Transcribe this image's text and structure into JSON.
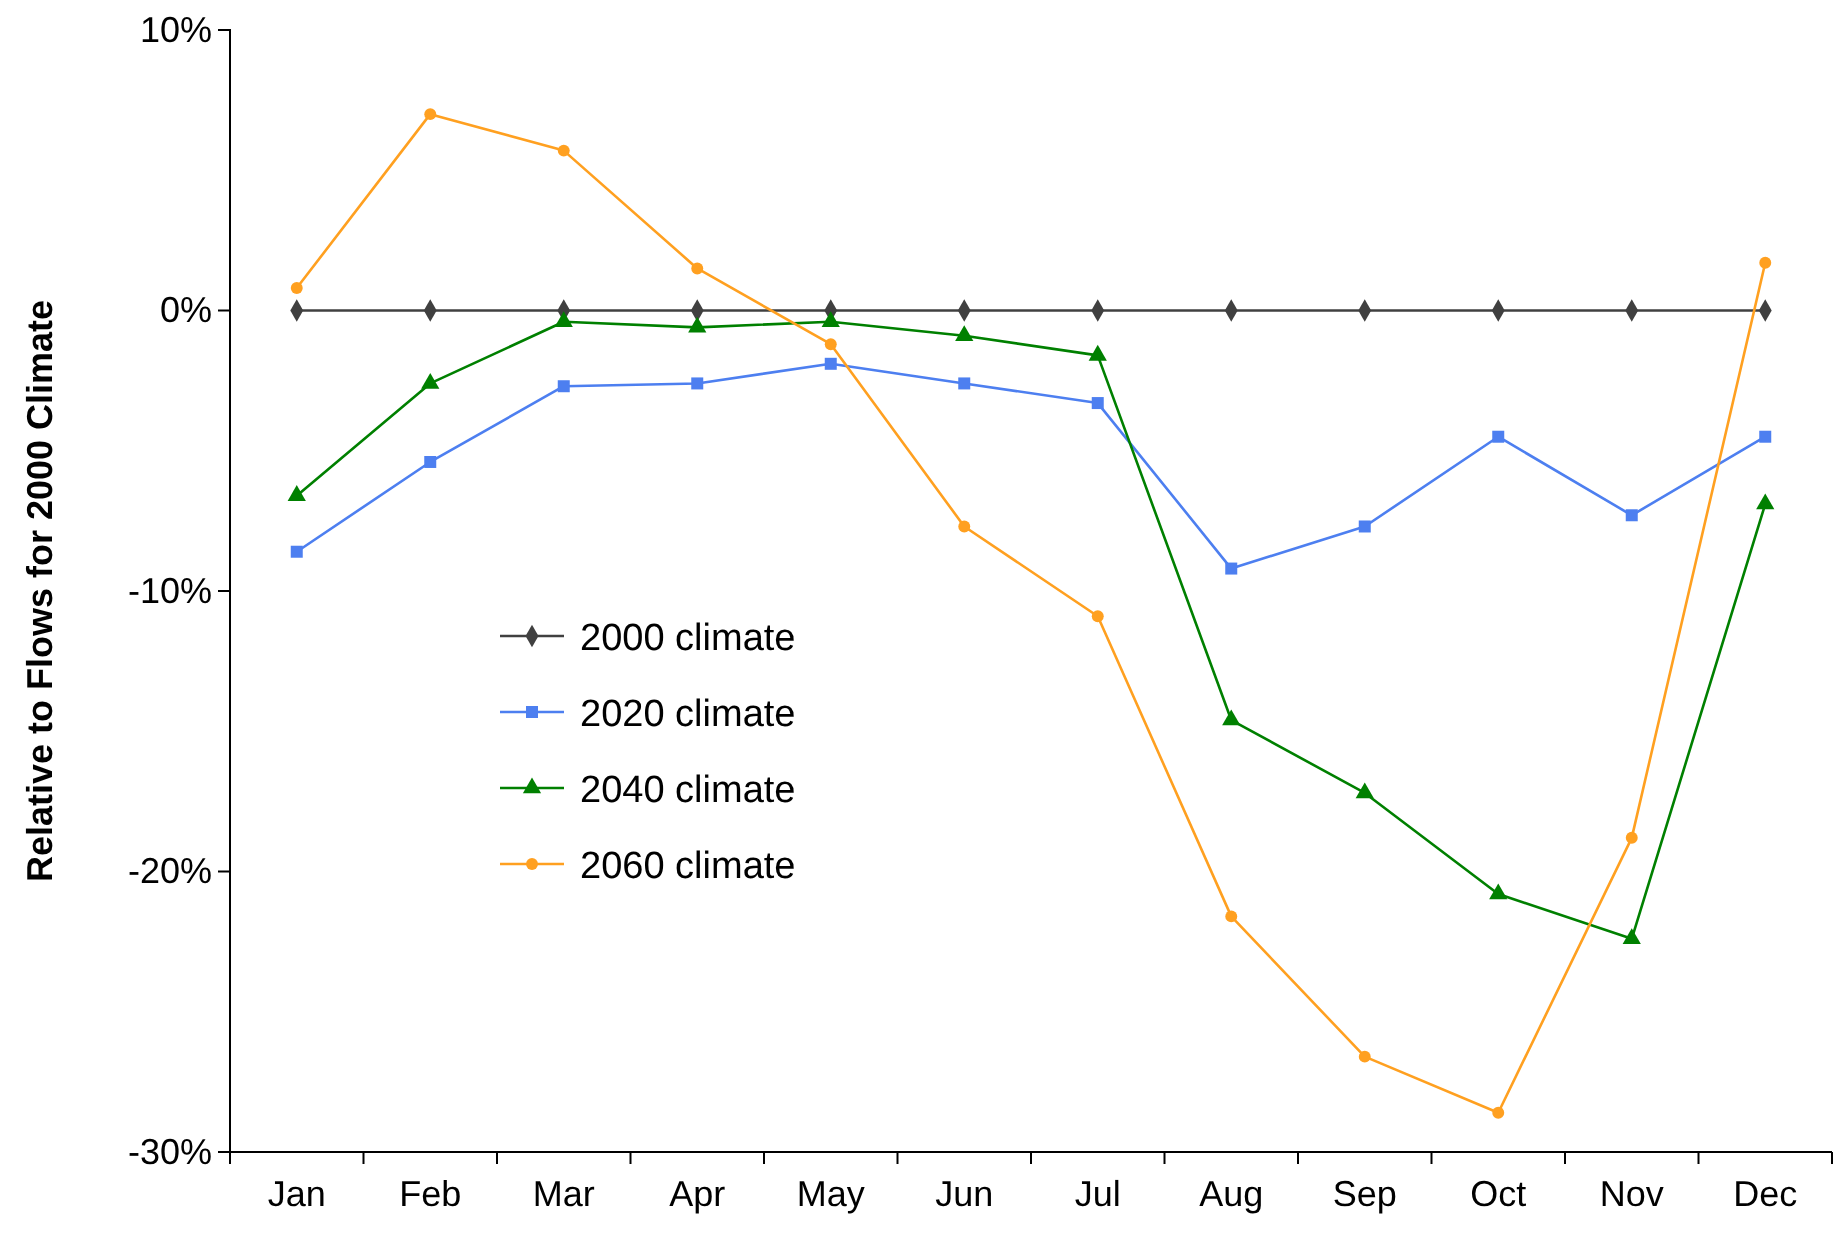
{
  "chart_data": {
    "type": "line",
    "ylabel": "Relative to Flows for 2000 Climate",
    "categories": [
      "Jan",
      "Feb",
      "Mar",
      "Apr",
      "May",
      "Jun",
      "Jul",
      "Aug",
      "Sep",
      "Oct",
      "Nov",
      "Dec"
    ],
    "ylim": [
      -30,
      10
    ],
    "yticks": [
      {
        "value": -30,
        "label": "-30%"
      },
      {
        "value": -20,
        "label": "-20%"
      },
      {
        "value": -10,
        "label": "-10%"
      },
      {
        "value": 0,
        "label": "0%"
      },
      {
        "value": 10,
        "label": "10%"
      }
    ],
    "grid": false,
    "legend": "left",
    "line_style": "solid",
    "series": [
      {
        "name": "2000 climate",
        "color": "#404040",
        "marker": "diamond",
        "values": [
          0,
          0,
          0,
          0,
          0,
          0,
          0,
          0,
          0,
          0,
          0,
          0
        ]
      },
      {
        "name": "2020 climate",
        "color": "#4d7ff0",
        "marker": "square",
        "values": [
          -8.6,
          -5.4,
          -2.7,
          -2.6,
          -1.9,
          -2.6,
          -3.3,
          -9.2,
          -7.7,
          -4.5,
          -7.3,
          -4.5
        ]
      },
      {
        "name": "2040 climate",
        "color": "#008000",
        "marker": "triangle",
        "values": [
          -6.6,
          -2.6,
          -0.4,
          -0.6,
          -0.4,
          -0.9,
          -1.6,
          -14.6,
          -17.2,
          -20.8,
          -22.4,
          -6.9
        ]
      },
      {
        "name": "2060 climate",
        "color": "#ffa020",
        "marker": "circle",
        "values": [
          0.8,
          7.0,
          5.7,
          1.5,
          -1.2,
          -7.7,
          -10.9,
          -21.6,
          -26.6,
          -28.6,
          -18.8,
          1.7
        ]
      }
    ]
  }
}
